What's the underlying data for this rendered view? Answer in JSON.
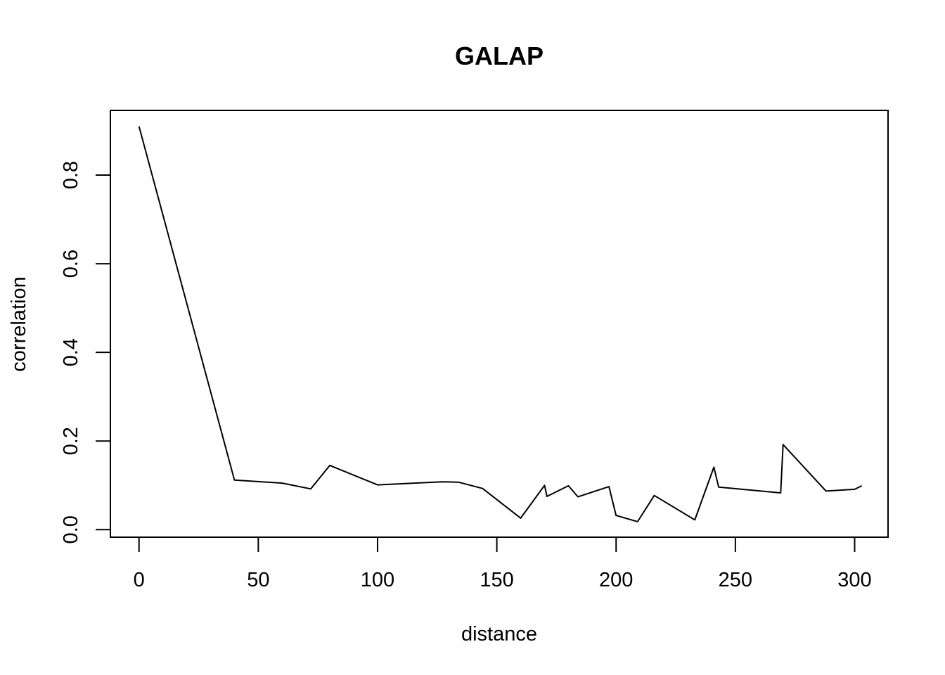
{
  "chart_data": {
    "type": "line",
    "title": "GALAP",
    "xlabel": "distance",
    "ylabel": "correlation",
    "xlim": [
      -12,
      314
    ],
    "ylim": [
      -0.017,
      0.946
    ],
    "xticks": [
      0,
      50,
      100,
      150,
      200,
      250,
      300
    ],
    "xtick_labels": [
      "0",
      "50",
      "100",
      "150",
      "200",
      "250",
      "300"
    ],
    "yticks": [
      0.0,
      0.2,
      0.4,
      0.6,
      0.8
    ],
    "ytick_labels": [
      "0.0",
      "0.2",
      "0.4",
      "0.6",
      "0.8"
    ],
    "grid": false,
    "series": [
      {
        "x": [
          0,
          40,
          60,
          72,
          80,
          100,
          127,
          134,
          144,
          160,
          170,
          171,
          180,
          184,
          197,
          200,
          209,
          216,
          233,
          241,
          243,
          269,
          270,
          288,
          300,
          303
        ],
        "y": [
          0.91,
          0.112,
          0.105,
          0.092,
          0.145,
          0.101,
          0.108,
          0.107,
          0.093,
          0.026,
          0.1,
          0.075,
          0.099,
          0.074,
          0.097,
          0.032,
          0.018,
          0.077,
          0.022,
          0.141,
          0.096,
          0.083,
          0.192,
          0.087,
          0.091,
          0.099
        ]
      }
    ]
  }
}
